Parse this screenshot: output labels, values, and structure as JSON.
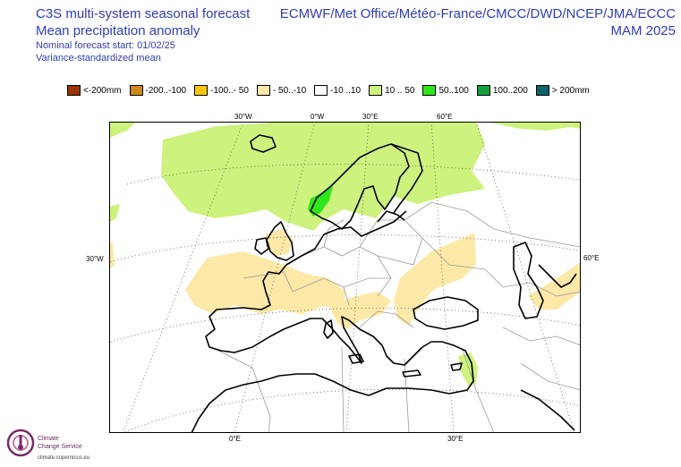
{
  "header": {
    "title": "C3S multi-system seasonal forecast",
    "subtitle": "Mean precipitation anomaly",
    "forecast_start": "Nominal forecast start: 01/02/25",
    "method": "Variance-standardized mean",
    "models": "ECMWF/Met Office/Météo-France/CMCC/DWD/NCEP/JMA/ECCC",
    "season": "MAM 2025"
  },
  "legend": [
    {
      "label": "<-200mm",
      "color": "#993300"
    },
    {
      "label": "-200..-100",
      "color": "#cc8a1a"
    },
    {
      "label": "-100..- 50",
      "color": "#ffc80a"
    },
    {
      "label": "- 50..-10",
      "color": "#fce9a8"
    },
    {
      "label": "-10 ..10",
      "color": "#ffffff"
    },
    {
      "label": "10 .. 50",
      "color": "#cdf27d"
    },
    {
      "label": "50..100",
      "color": "#2ee61a"
    },
    {
      "label": "100..200",
      "color": "#13a03c"
    },
    {
      "label": "> 200mm",
      "color": "#0e6469"
    }
  ],
  "axes": {
    "top": [
      "30°W",
      "0°W",
      "30°E",
      "60°E"
    ],
    "left": "30°W",
    "right": "60°E",
    "bottom": [
      "0°E",
      "30°E"
    ]
  },
  "logo": {
    "line1": "Climate",
    "line2": "Change Service",
    "url": "climate.copernicus.eu"
  },
  "colors": {
    "title": "#2e3db8",
    "positive_light": "#cdf27d",
    "negative_light": "#fce9a8",
    "positive_medium": "#2ee61a"
  }
}
